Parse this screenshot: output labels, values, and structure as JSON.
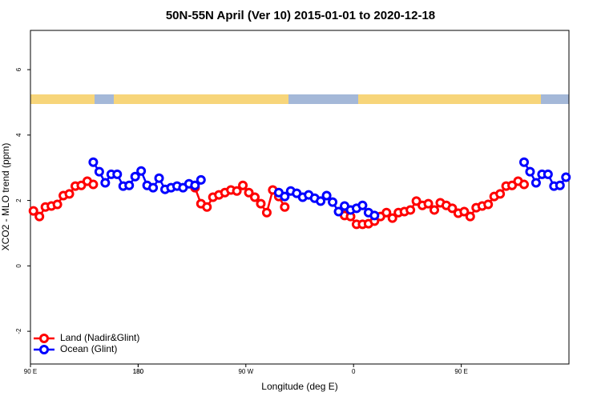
{
  "chart_data": {
    "type": "line",
    "title": "50N-55N April (Ver 10)   2015-01-01 to 2020-12-18",
    "x_label": "Longitude (deg E)",
    "y_label": "XCO2 - MLO trend (ppm)",
    "x": [
      92.5,
      97.5,
      102.5,
      107.5,
      112.5,
      117.5,
      122.5,
      127.5,
      132.5,
      137.5,
      142.5,
      147.5,
      152.5,
      157.5,
      162.5,
      167.5,
      172.5,
      177.5,
      182.5,
      187.5,
      192.5,
      197.5,
      202.5,
      207.5,
      212.5,
      217.5,
      222.5,
      227.5,
      232.5,
      237.5,
      242.5,
      247.5,
      252.5,
      257.5,
      262.5,
      267.5,
      272.5,
      277.5,
      282.5,
      287.5,
      292.5,
      297.5,
      302.5,
      307.5,
      312.5,
      317.5,
      322.5,
      327.5,
      332.5,
      337.5,
      342.5,
      347.5,
      352.5,
      357.5,
      362.5,
      367.5,
      372.5,
      377.5,
      382.5,
      387.5,
      392.5,
      397.5,
      402.5,
      407.5,
      412.5,
      417.5,
      422.5,
      427.5,
      432.5,
      437.5,
      442.5,
      447.5,
      452.5,
      457.5,
      462.5,
      467.5,
      472.5,
      477.5,
      482.5,
      487.5,
      492.5,
      497.5,
      502.5,
      507.5,
      512.5,
      517.5,
      522.5,
      527.5,
      532.5,
      537.5
    ],
    "series": [
      {
        "name": "Land (Nadir&Glint)",
        "color": "#ff0000",
        "values": [
          1.68,
          1.51,
          1.8,
          1.83,
          1.88,
          2.15,
          2.2,
          2.44,
          2.46,
          2.59,
          2.49,
          null,
          null,
          null,
          null,
          null,
          null,
          null,
          null,
          null,
          null,
          null,
          null,
          null,
          null,
          null,
          null,
          2.39,
          1.9,
          1.8,
          2.1,
          2.17,
          2.24,
          2.32,
          2.29,
          2.46,
          2.24,
          2.1,
          1.9,
          1.63,
          2.32,
          2.12,
          1.8,
          null,
          null,
          null,
          null,
          null,
          null,
          null,
          null,
          null,
          1.54,
          1.51,
          1.27,
          1.27,
          1.29,
          1.37,
          1.51,
          1.63,
          1.46,
          1.63,
          1.66,
          1.71,
          1.98,
          1.85,
          1.9,
          1.71,
          1.93,
          1.85,
          1.76,
          1.61,
          1.66,
          1.51,
          1.78,
          1.83,
          1.88,
          2.12,
          2.2,
          2.44,
          2.46,
          2.59,
          2.49,
          null,
          null,
          null,
          null,
          null,
          null,
          null
        ]
      },
      {
        "name": "Ocean (Glint)",
        "color": "#0000ff",
        "values": [
          null,
          null,
          null,
          null,
          null,
          null,
          null,
          null,
          null,
          null,
          3.17,
          2.88,
          2.54,
          2.8,
          2.8,
          2.44,
          2.46,
          2.73,
          2.9,
          2.46,
          2.39,
          2.68,
          2.34,
          2.39,
          2.44,
          2.39,
          2.51,
          2.46,
          2.63,
          null,
          null,
          null,
          null,
          null,
          null,
          null,
          null,
          null,
          null,
          null,
          null,
          2.24,
          2.12,
          2.29,
          2.22,
          2.1,
          2.17,
          2.07,
          1.98,
          2.15,
          1.95,
          1.66,
          1.83,
          1.71,
          1.76,
          1.85,
          1.63,
          1.54,
          null,
          null,
          null,
          null,
          null,
          null,
          null,
          null,
          null,
          null,
          null,
          null,
          null,
          null,
          null,
          null,
          null,
          null,
          null,
          null,
          null,
          null,
          null,
          null,
          3.17,
          2.88,
          2.54,
          2.8,
          2.8,
          2.44,
          2.46,
          2.71
        ]
      }
    ],
    "xlim": [
      90,
      540
    ],
    "xticks": [
      {
        "value": 90,
        "label": "90 E"
      },
      180,
      {
        "value": 270,
        "label": "90 W"
      },
      {
        "value": 360,
        "label": "0"
      },
      {
        "value": 450,
        "label": "90 E"
      },
      180.0001
    ],
    "ylim": [
      -3,
      7.2
    ],
    "yticks": [
      -2,
      0,
      2,
      4,
      6
    ],
    "legend": "bottom-left"
  }
}
